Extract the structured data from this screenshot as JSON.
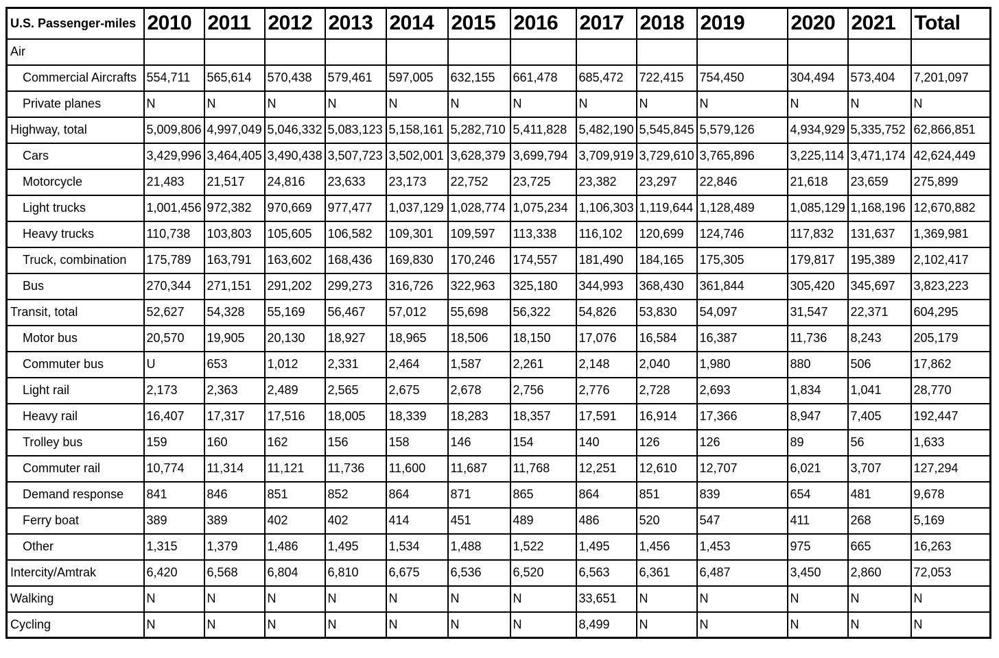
{
  "chart_data": {
    "type": "table",
    "title": "U.S. Passenger-miles",
    "columns": [
      "U.S. Passenger-miles",
      "2010",
      "2011",
      "2012",
      "2013",
      "2014",
      "2015",
      "2016",
      "2017",
      "2018",
      "2019",
      "2020",
      "2021",
      "Total"
    ],
    "rows": [
      {
        "label": "Air",
        "indent": 0,
        "values": [
          "",
          "",
          "",
          "",
          "",
          "",
          "",
          "",
          "",
          "",
          "",
          "",
          ""
        ]
      },
      {
        "label": "Commercial Aircrafts",
        "indent": 1,
        "values": [
          "554,711",
          "565,614",
          "570,438",
          "579,461",
          "597,005",
          "632,155",
          "661,478",
          "685,472",
          "722,415",
          "754,450",
          "304,494",
          "573,404",
          "7,201,097"
        ]
      },
      {
        "label": "Private planes",
        "indent": 1,
        "values": [
          "N",
          "N",
          "N",
          "N",
          "N",
          "N",
          "N",
          "N",
          "N",
          "N",
          "N",
          "N",
          "N"
        ]
      },
      {
        "label": "Highway, total",
        "indent": 0,
        "values": [
          "5,009,806",
          "4,997,049",
          "5,046,332",
          "5,083,123",
          "5,158,161",
          "5,282,710",
          "5,411,828",
          "5,482,190",
          "5,545,845",
          "5,579,126",
          "4,934,929",
          "5,335,752",
          "62,866,851"
        ]
      },
      {
        "label": "Cars",
        "indent": 1,
        "values": [
          "3,429,996",
          "3,464,405",
          "3,490,438",
          "3,507,723",
          "3,502,001",
          "3,628,379",
          "3,699,794",
          "3,709,919",
          "3,729,610",
          "3,765,896",
          "3,225,114",
          "3,471,174",
          "42,624,449"
        ]
      },
      {
        "label": "Motorcycle",
        "indent": 1,
        "values": [
          "21,483",
          "21,517",
          "24,816",
          "23,633",
          "23,173",
          "22,752",
          "23,725",
          "23,382",
          "23,297",
          "22,846",
          "21,618",
          "23,659",
          "275,899"
        ]
      },
      {
        "label": "Light trucks",
        "indent": 1,
        "values": [
          "1,001,456",
          "972,382",
          "970,669",
          "977,477",
          "1,037,129",
          "1,028,774",
          "1,075,234",
          "1,106,303",
          "1,119,644",
          "1,128,489",
          "1,085,129",
          "1,168,196",
          "12,670,882"
        ]
      },
      {
        "label": "Heavy trucks",
        "indent": 1,
        "values": [
          "110,738",
          "103,803",
          "105,605",
          "106,582",
          "109,301",
          "109,597",
          "113,338",
          "116,102",
          "120,699",
          "124,746",
          "117,832",
          "131,637",
          "1,369,981"
        ]
      },
      {
        "label": "Truck, combination",
        "indent": 1,
        "values": [
          "175,789",
          "163,791",
          "163,602",
          "168,436",
          "169,830",
          "170,246",
          "174,557",
          "181,490",
          "184,165",
          "175,305",
          "179,817",
          "195,389",
          "2,102,417"
        ]
      },
      {
        "label": "Bus",
        "indent": 1,
        "values": [
          "270,344",
          "271,151",
          "291,202",
          "299,273",
          "316,726",
          "322,963",
          "325,180",
          "344,993",
          "368,430",
          "361,844",
          "305,420",
          "345,697",
          "3,823,223"
        ]
      },
      {
        "label": "Transit, total",
        "indent": 0,
        "values": [
          "52,627",
          "54,328",
          "55,169",
          "56,467",
          "57,012",
          "55,698",
          "56,322",
          "54,826",
          "53,830",
          "54,097",
          "31,547",
          "22,371",
          "604,295"
        ]
      },
      {
        "label": "Motor bus",
        "indent": 1,
        "values": [
          "20,570",
          "19,905",
          "20,130",
          "18,927",
          "18,965",
          "18,506",
          "18,150",
          "17,076",
          "16,584",
          "16,387",
          "11,736",
          "8,243",
          "205,179"
        ]
      },
      {
        "label": "Commuter bus",
        "indent": 1,
        "values": [
          "U",
          "653",
          "1,012",
          "2,331",
          "2,464",
          "1,587",
          "2,261",
          "2,148",
          "2,040",
          "1,980",
          "880",
          "506",
          "17,862"
        ]
      },
      {
        "label": "Light rail",
        "indent": 1,
        "values": [
          "2,173",
          "2,363",
          "2,489",
          "2,565",
          "2,675",
          "2,678",
          "2,756",
          "2,776",
          "2,728",
          "2,693",
          "1,834",
          "1,041",
          "28,770"
        ]
      },
      {
        "label": "Heavy rail",
        "indent": 1,
        "values": [
          "16,407",
          "17,317",
          "17,516",
          "18,005",
          "18,339",
          "18,283",
          "18,357",
          "17,591",
          "16,914",
          "17,366",
          "8,947",
          "7,405",
          "192,447"
        ]
      },
      {
        "label": "Trolley bus",
        "indent": 1,
        "values": [
          "159",
          "160",
          "162",
          "156",
          "158",
          "146",
          "154",
          "140",
          "126",
          "126",
          "89",
          "56",
          "1,633"
        ]
      },
      {
        "label": "Commuter rail",
        "indent": 1,
        "values": [
          "10,774",
          "11,314",
          "11,121",
          "11,736",
          "11,600",
          "11,687",
          "11,768",
          "12,251",
          "12,610",
          "12,707",
          "6,021",
          "3,707",
          "127,294"
        ]
      },
      {
        "label": "Demand response",
        "indent": 1,
        "values": [
          "841",
          "846",
          "851",
          "852",
          "864",
          "871",
          "865",
          "864",
          "851",
          "839",
          "654",
          "481",
          "9,678"
        ]
      },
      {
        "label": "Ferry boat",
        "indent": 1,
        "values": [
          "389",
          "389",
          "402",
          "402",
          "414",
          "451",
          "489",
          "486",
          "520",
          "547",
          "411",
          "268",
          "5,169"
        ]
      },
      {
        "label": "Other",
        "indent": 1,
        "values": [
          "1,315",
          "1,379",
          "1,486",
          "1,495",
          "1,534",
          "1,488",
          "1,522",
          "1,495",
          "1,456",
          "1,453",
          "975",
          "665",
          "16,263"
        ]
      },
      {
        "label": "Intercity/Amtrak",
        "indent": 0,
        "values": [
          "6,420",
          "6,568",
          "6,804",
          "6,810",
          "6,675",
          "6,536",
          "6,520",
          "6,563",
          "6,361",
          "6,487",
          "3,450",
          "2,860",
          "72,053"
        ]
      },
      {
        "label": "Walking",
        "indent": 0,
        "values": [
          "N",
          "N",
          "N",
          "N",
          "N",
          "N",
          "N",
          "33,651",
          "N",
          "N",
          "N",
          "N",
          "N"
        ]
      },
      {
        "label": "Cycling",
        "indent": 0,
        "values": [
          "N",
          "N",
          "N",
          "N",
          "N",
          "N",
          "N",
          "8,499",
          "N",
          "N",
          "N",
          "N",
          "N"
        ]
      }
    ]
  }
}
